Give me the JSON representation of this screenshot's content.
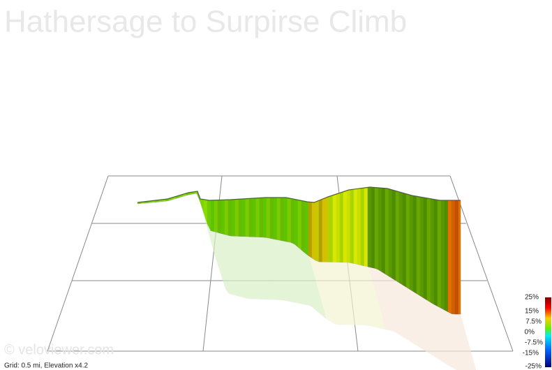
{
  "title": "Hathersage to Surpirse Climb",
  "watermark": "© veloviewer.com",
  "footer": "Grid: 0.5 mi, Elevation x4.2",
  "legend": {
    "labels": [
      "25%",
      "15%",
      "7.5%",
      "0%",
      "-7.5%",
      "-15%",
      "-25%"
    ]
  }
}
